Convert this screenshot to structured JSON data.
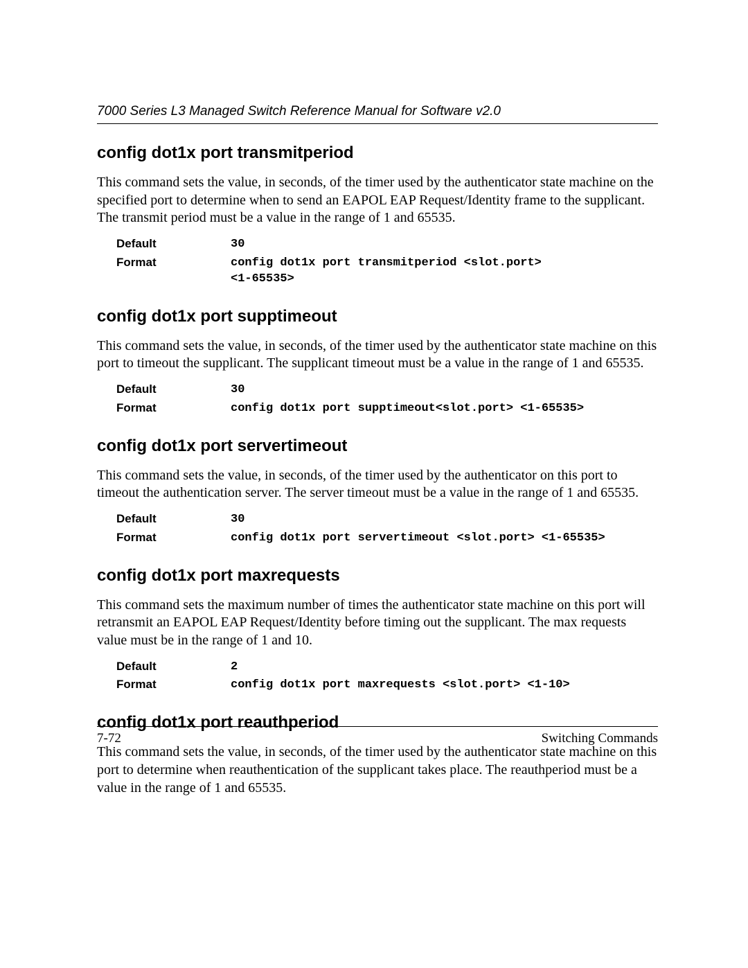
{
  "header": {
    "running_head": "7000 Series L3 Managed Switch Reference Manual for Software v2.0"
  },
  "sections": [
    {
      "title": "config dot1x port transmitperiod",
      "body": "This command sets the value, in seconds, of the timer used by the authenticator state machine on the specified port to determine when to send an EAPOL EAP Request/Identity frame to the supplicant.  The transmit period must be a value in the range of 1 and 65535.",
      "specs": [
        {
          "label": "Default",
          "value": "30"
        },
        {
          "label": "Format",
          "value": "config dot1x port transmitperiod <slot.port>\n<1-65535>"
        }
      ]
    },
    {
      "title": "config dot1x port supptimeout",
      "body": "This command sets the value, in seconds, of the timer used by the authenticator state machine on this port to timeout the supplicant.  The supplicant timeout must be a value in the range of 1 and 65535.",
      "specs": [
        {
          "label": "Default",
          "value": "30"
        },
        {
          "label": "Format",
          "value": "config dot1x port supptimeout<slot.port> <1-65535>"
        }
      ]
    },
    {
      "title": "config dot1x port servertimeout",
      "body": "This command sets the value, in seconds, of the timer used by the authenticator on this port to timeout the authentication server.  The server timeout must be a value in the range of 1 and 65535.",
      "specs": [
        {
          "label": "Default",
          "value": "30"
        },
        {
          "label": "Format",
          "value": "config dot1x port servertimeout <slot.port> <1-65535>"
        }
      ]
    },
    {
      "title": "config dot1x port maxrequests",
      "body": "This command sets the maximum number of times the authenticator state machine on this port will retransmit an EAPOL EAP Request/Identity before timing out the supplicant.  The max requests value must be in the range of 1 and 10.",
      "specs": [
        {
          "label": "Default",
          "value": "2"
        },
        {
          "label": "Format",
          "value": "config dot1x port maxrequests <slot.port> <1-10>"
        }
      ]
    },
    {
      "title": "config dot1x port reauthperiod",
      "body": "This command sets the value, in seconds, of the timer used by the authenticator state machine on this port to determine when reauthentication of the supplicant takes place.  The reauthperiod must be a value in the range of 1 and 65535.",
      "specs": []
    }
  ],
  "footer": {
    "page_number": "7-72",
    "section_name": "Switching Commands"
  }
}
